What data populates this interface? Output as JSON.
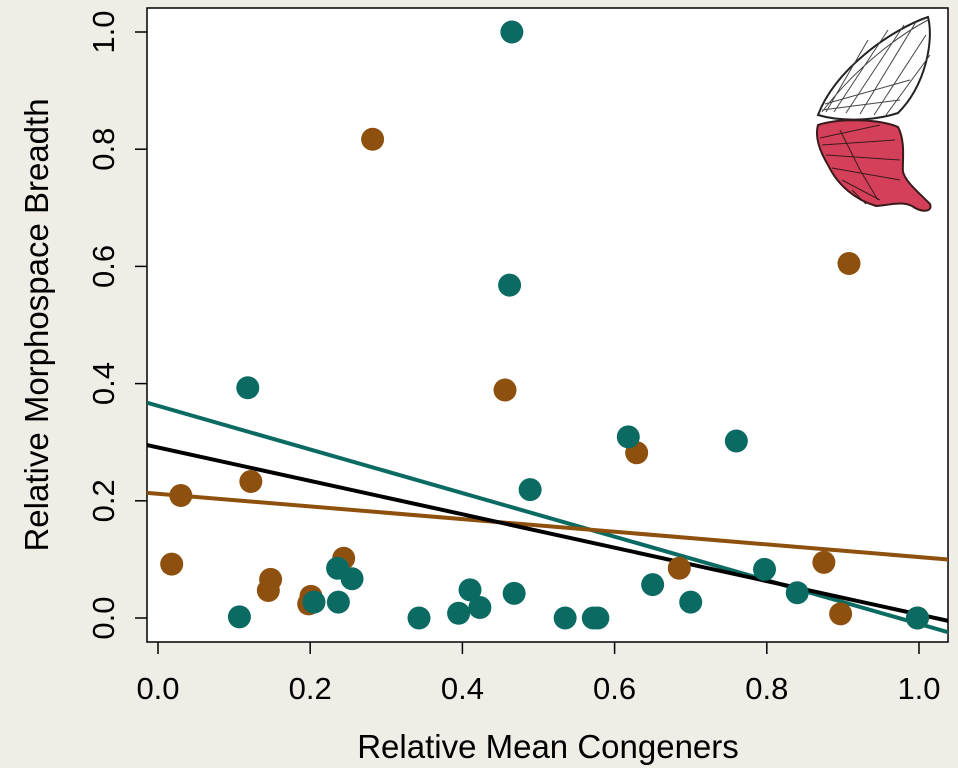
{
  "chart_data": {
    "type": "scatter",
    "title": "",
    "xlabel": "Relative Mean Congeners",
    "ylabel": "Relative Morphospace Breadth",
    "xlim": [
      -0.02,
      1.04
    ],
    "ylim": [
      -0.04,
      1.04
    ],
    "x_ticks": [
      "0.0",
      "0.2",
      "0.4",
      "0.6",
      "0.8",
      "1.0"
    ],
    "y_ticks": [
      "0.0",
      "0.2",
      "0.4",
      "0.6",
      "0.8",
      "1.0"
    ],
    "grid": false,
    "legend": "none",
    "colors": {
      "teal": "#0b6b63",
      "brown": "#8e500e",
      "black": "#000000",
      "wing_fill": "#d4405a",
      "background": "#efede6"
    },
    "series": [
      {
        "color": "#0b6b63",
        "points": [
          [
            0.107,
            0.002
          ],
          [
            0.118,
            0.393
          ],
          [
            0.205,
            0.027
          ],
          [
            0.236,
            0.085
          ],
          [
            0.237,
            0.027
          ],
          [
            0.255,
            0.067
          ],
          [
            0.343,
            0.0
          ],
          [
            0.395,
            0.008
          ],
          [
            0.41,
            0.048
          ],
          [
            0.423,
            0.018
          ],
          [
            0.462,
            0.568
          ],
          [
            0.465,
            1.0
          ],
          [
            0.468,
            0.042
          ],
          [
            0.489,
            0.219
          ],
          [
            0.535,
            0.0
          ],
          [
            0.572,
            0.0
          ],
          [
            0.578,
            0.0
          ],
          [
            0.618,
            0.309
          ],
          [
            0.65,
            0.057
          ],
          [
            0.7,
            0.027
          ],
          [
            0.76,
            0.302
          ],
          [
            0.797,
            0.083
          ],
          [
            0.84,
            0.043
          ],
          [
            0.998,
            0.0
          ]
        ],
        "fit": {
          "intercept": 0.362,
          "slope": -0.372
        }
      },
      {
        "color": "#8e500e",
        "points": [
          [
            0.018,
            0.092
          ],
          [
            0.03,
            0.209
          ],
          [
            0.122,
            0.233
          ],
          [
            0.145,
            0.047
          ],
          [
            0.148,
            0.066
          ],
          [
            0.198,
            0.024
          ],
          [
            0.201,
            0.037
          ],
          [
            0.244,
            0.102
          ],
          [
            0.282,
            0.817
          ],
          [
            0.456,
            0.389
          ],
          [
            0.629,
            0.282
          ],
          [
            0.685,
            0.085
          ],
          [
            0.875,
            0.095
          ],
          [
            0.897,
            0.007
          ],
          [
            0.908,
            0.605
          ],
          [
            0.998,
            0.0
          ]
        ],
        "fit": {
          "intercept": 0.212,
          "slope": -0.108
        }
      },
      {
        "color": "#000000",
        "points": [],
        "fit": {
          "intercept": 0.291,
          "slope": -0.285
        }
      }
    ]
  }
}
